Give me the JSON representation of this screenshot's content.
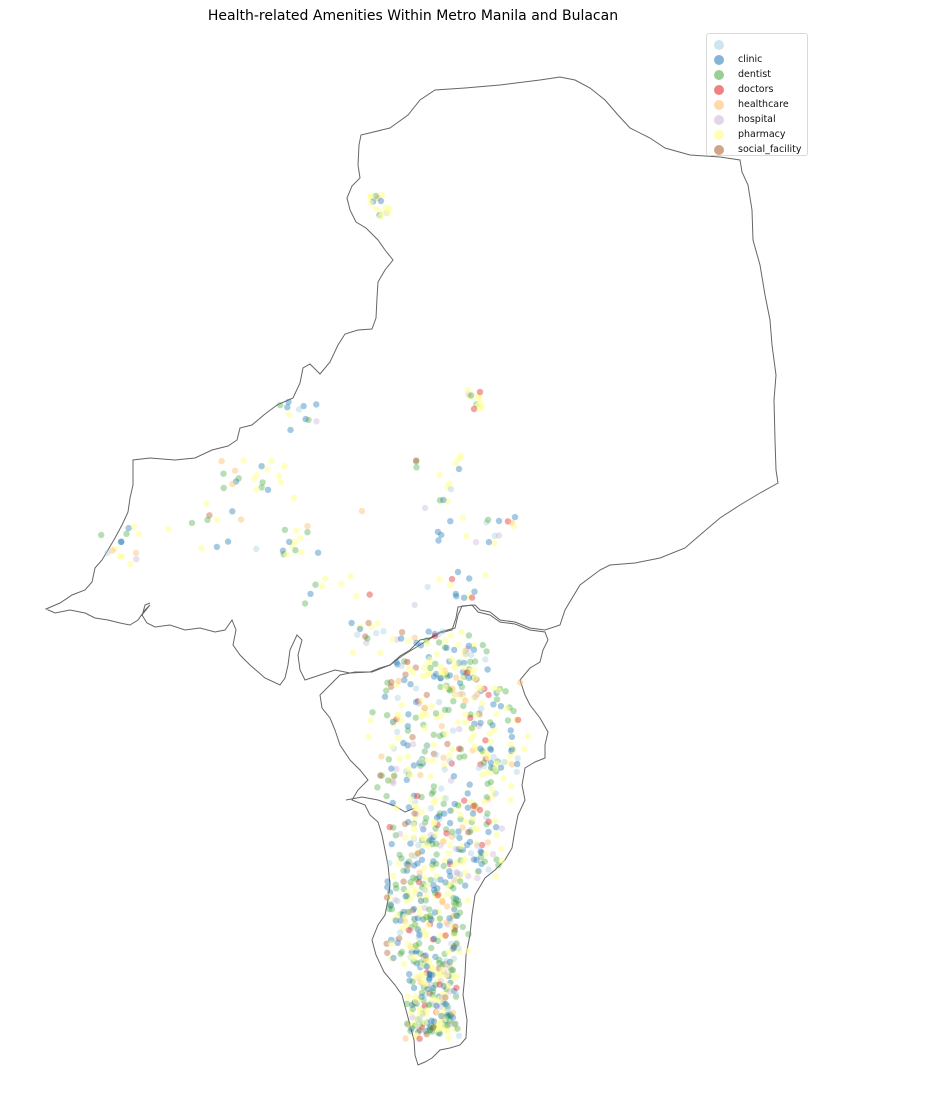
{
  "title": "Health-related Amenities Within Metro Manila and Bulacan",
  "legend": {
    "items": [
      {
        "label": "",
        "color": "#a6cee3",
        "opacity": 0.4
      },
      {
        "label": "clinic",
        "color": "#1f78b4",
        "opacity": 0.4
      },
      {
        "label": "dentist",
        "color": "#33a02c",
        "opacity": 0.35
      },
      {
        "label": "doctors",
        "color": "#e31a1c",
        "opacity": 0.4
      },
      {
        "label": "healthcare",
        "color": "#fdbf6f",
        "opacity": 0.45
      },
      {
        "label": "hospital",
        "color": "#cab2d6",
        "opacity": 0.4
      },
      {
        "label": "pharmacy",
        "color": "#ffff99",
        "opacity": 0.6
      },
      {
        "label": "social_facility",
        "color": "#b15928",
        "opacity": 0.4
      }
    ]
  },
  "boundary_color": "#666666"
}
